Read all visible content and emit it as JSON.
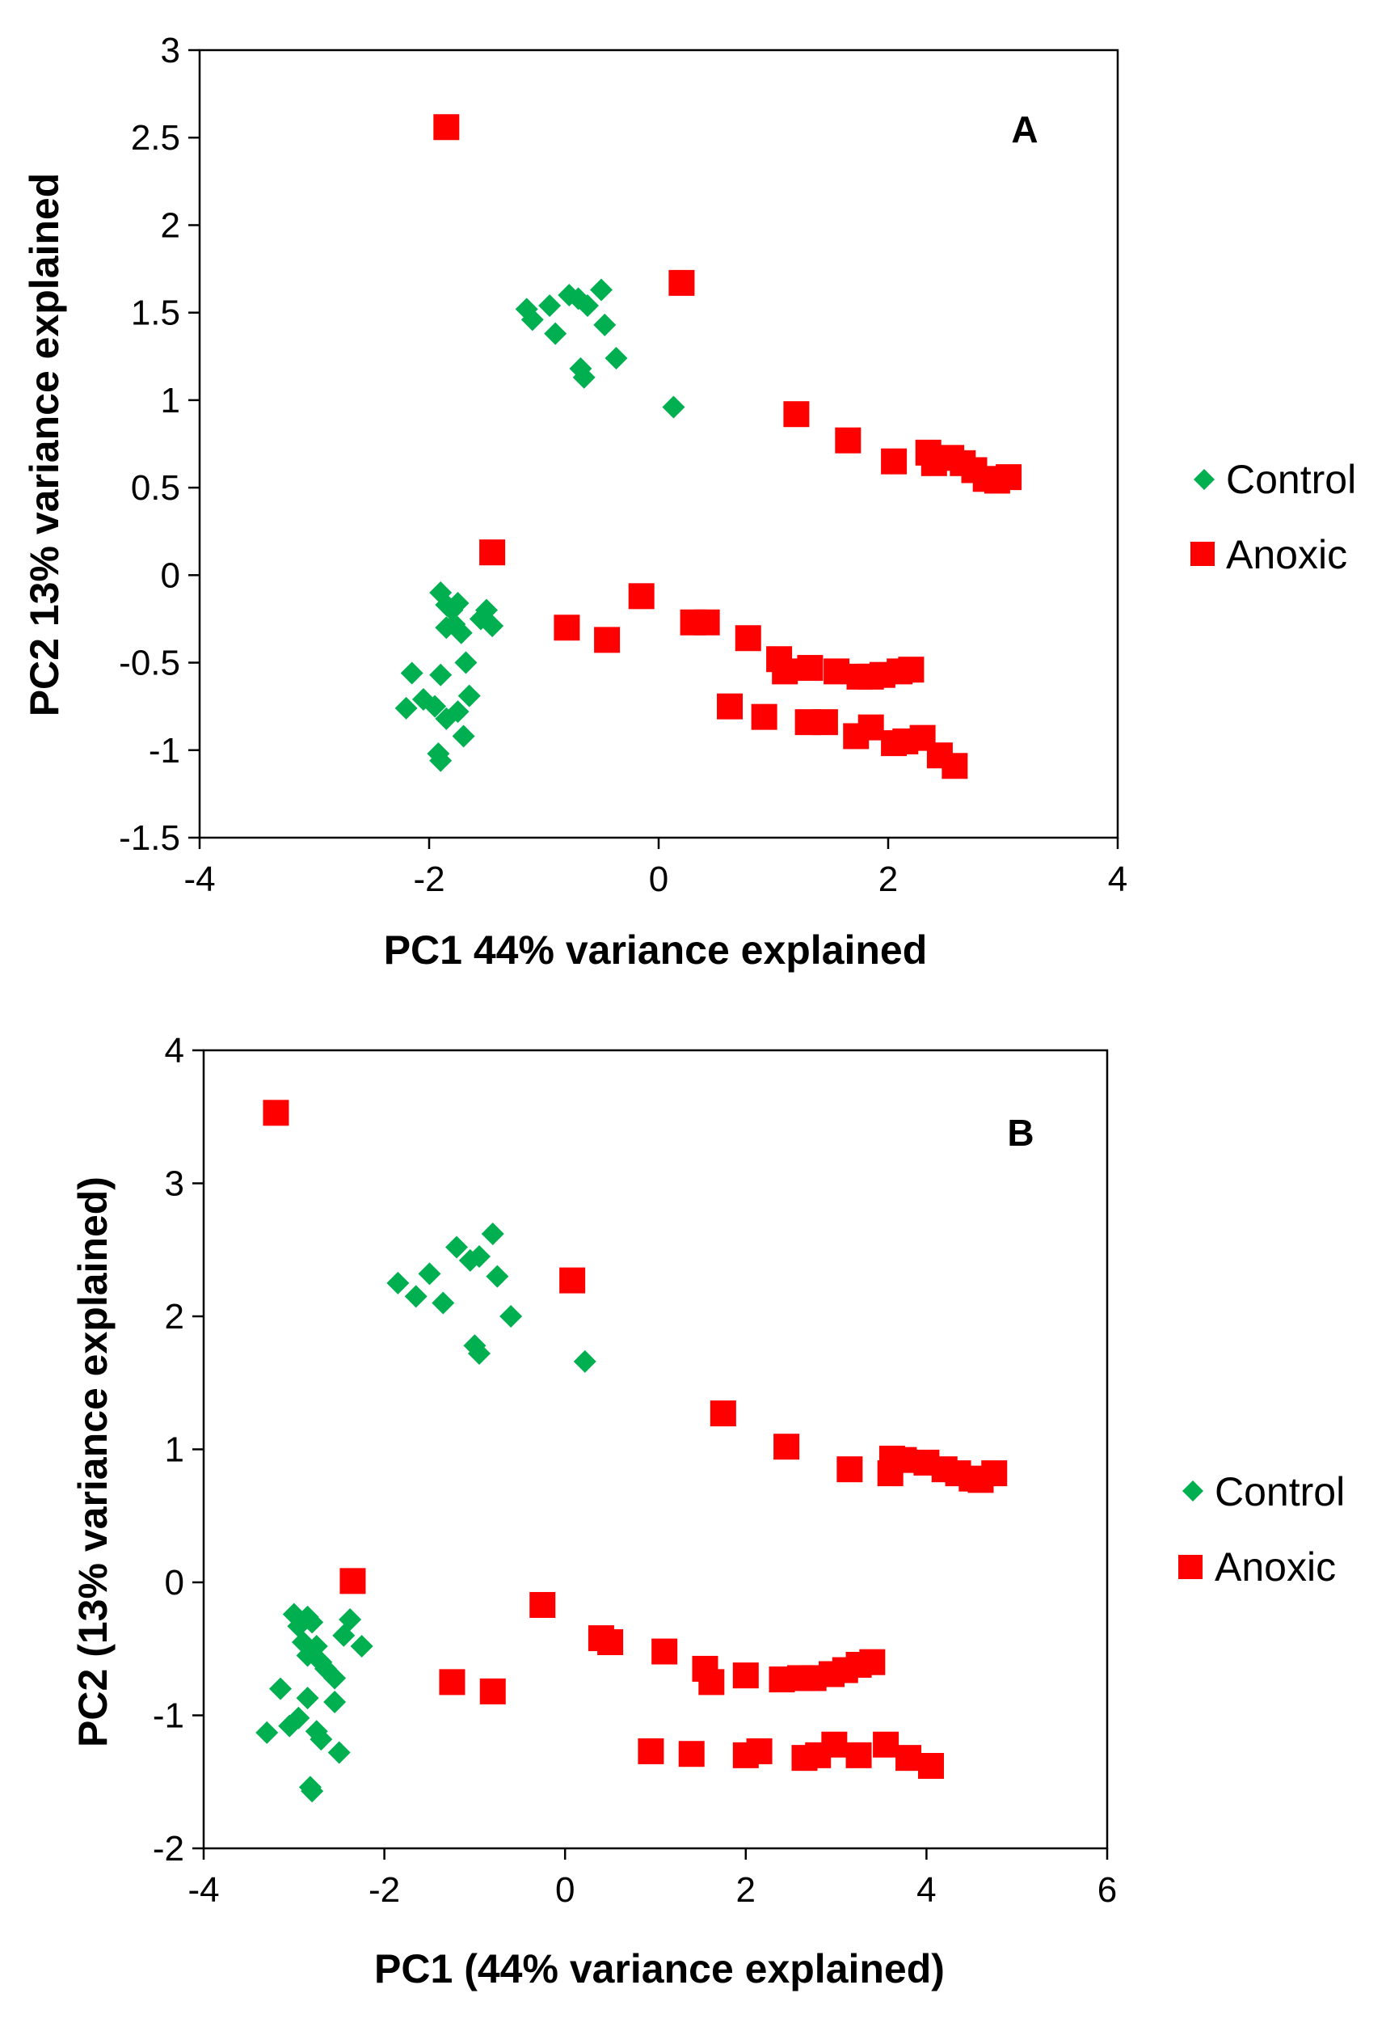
{
  "colors": {
    "control": "#00b050",
    "anoxic": "#ff0000",
    "axis": "#000000"
  },
  "chart_data": [
    {
      "type": "scatter",
      "panel_label": "A",
      "xlabel": "PC1 44% variance explained",
      "ylabel": "PC2 13% variance explained",
      "xlim": [
        -4,
        4
      ],
      "ylim": [
        -1.5,
        3
      ],
      "xticks": [
        -4,
        -2,
        0,
        2,
        4
      ],
      "yticks": [
        -1.5,
        -1,
        -0.5,
        0,
        0.5,
        1,
        1.5,
        2,
        2.5,
        3
      ],
      "xtick_labels": [
        "-4",
        "-2",
        "0",
        "2",
        "4"
      ],
      "ytick_labels": [
        "-1.5",
        "-1",
        "-0.5",
        "0",
        "0.5",
        "1",
        "1.5",
        "2",
        "2.5",
        "3"
      ],
      "legend": {
        "position": "right",
        "entries": [
          "Control",
          "Anoxic"
        ]
      },
      "series": [
        {
          "name": "Control",
          "marker": "diamond",
          "points": [
            [
              -1.15,
              1.52
            ],
            [
              -1.1,
              1.46
            ],
            [
              -0.95,
              1.54
            ],
            [
              -0.9,
              1.38
            ],
            [
              -0.78,
              1.6
            ],
            [
              -0.7,
              1.58
            ],
            [
              -0.62,
              1.54
            ],
            [
              -0.5,
              1.63
            ],
            [
              -0.47,
              1.43
            ],
            [
              -0.37,
              1.24
            ],
            [
              -0.68,
              1.18
            ],
            [
              -0.65,
              1.13
            ],
            [
              0.13,
              0.96
            ],
            [
              -1.9,
              -0.1
            ],
            [
              -1.85,
              -0.17
            ],
            [
              -1.8,
              -0.2
            ],
            [
              -1.78,
              -0.28
            ],
            [
              -1.72,
              -0.33
            ],
            [
              -1.75,
              -0.16
            ],
            [
              -1.85,
              -0.3
            ],
            [
              -1.5,
              -0.2
            ],
            [
              -1.45,
              -0.29
            ],
            [
              -1.55,
              -0.25
            ],
            [
              -2.15,
              -0.56
            ],
            [
              -2.2,
              -0.76
            ],
            [
              -1.9,
              -0.57
            ],
            [
              -2.05,
              -0.71
            ],
            [
              -1.95,
              -0.75
            ],
            [
              -1.85,
              -0.82
            ],
            [
              -1.75,
              -0.78
            ],
            [
              -1.65,
              -0.69
            ],
            [
              -1.68,
              -0.5
            ],
            [
              -1.7,
              -0.92
            ],
            [
              -1.92,
              -1.02
            ],
            [
              -1.9,
              -1.06
            ]
          ]
        },
        {
          "name": "Anoxic",
          "marker": "square",
          "points": [
            [
              -1.85,
              2.56
            ],
            [
              0.2,
              1.67
            ],
            [
              -1.45,
              0.13
            ],
            [
              1.2,
              0.92
            ],
            [
              1.65,
              0.77
            ],
            [
              2.05,
              0.65
            ],
            [
              2.35,
              0.7
            ],
            [
              2.4,
              0.64
            ],
            [
              2.55,
              0.67
            ],
            [
              2.65,
              0.64
            ],
            [
              2.75,
              0.6
            ],
            [
              2.85,
              0.55
            ],
            [
              2.95,
              0.54
            ],
            [
              3.05,
              0.56
            ],
            [
              -0.8,
              -0.3
            ],
            [
              -0.45,
              -0.37
            ],
            [
              -0.15,
              -0.12
            ],
            [
              0.3,
              -0.27
            ],
            [
              0.42,
              -0.27
            ],
            [
              0.78,
              -0.36
            ],
            [
              1.05,
              -0.48
            ],
            [
              1.1,
              -0.55
            ],
            [
              1.32,
              -0.53
            ],
            [
              1.55,
              -0.55
            ],
            [
              1.75,
              -0.58
            ],
            [
              1.85,
              -0.58
            ],
            [
              1.95,
              -0.57
            ],
            [
              2.1,
              -0.55
            ],
            [
              2.2,
              -0.54
            ],
            [
              0.62,
              -0.75
            ],
            [
              0.92,
              -0.81
            ],
            [
              1.3,
              -0.84
            ],
            [
              1.45,
              -0.84
            ],
            [
              1.72,
              -0.92
            ],
            [
              1.85,
              -0.87
            ],
            [
              2.05,
              -0.96
            ],
            [
              2.15,
              -0.95
            ],
            [
              2.3,
              -0.93
            ],
            [
              2.45,
              -1.03
            ],
            [
              2.58,
              -1.09
            ]
          ]
        }
      ]
    },
    {
      "type": "scatter",
      "panel_label": "B",
      "xlabel": "PC1 (44% variance explained)",
      "ylabel": "PC2 (13% variance explained)",
      "xlim": [
        -4,
        6
      ],
      "ylim": [
        -2,
        4
      ],
      "xticks": [
        -4,
        -2,
        0,
        2,
        4,
        6
      ],
      "yticks": [
        -2,
        -1,
        0,
        1,
        2,
        3,
        4
      ],
      "xtick_labels": [
        "-4",
        "-2",
        "0",
        "2",
        "4",
        "6"
      ],
      "ytick_labels": [
        "-2",
        "-1",
        "0",
        "1",
        "2",
        "3",
        "4"
      ],
      "legend": {
        "position": "right",
        "entries": [
          "Control",
          "Anoxic"
        ]
      },
      "series": [
        {
          "name": "Control",
          "marker": "diamond",
          "points": [
            [
              -1.85,
              2.25
            ],
            [
              -1.65,
              2.15
            ],
            [
              -1.5,
              2.32
            ],
            [
              -1.35,
              2.1
            ],
            [
              -1.2,
              2.52
            ],
            [
              -1.05,
              2.42
            ],
            [
              -0.95,
              2.45
            ],
            [
              -0.8,
              2.62
            ],
            [
              -0.75,
              2.3
            ],
            [
              -0.6,
              2.0
            ],
            [
              -1.0,
              1.78
            ],
            [
              -0.95,
              1.72
            ],
            [
              0.22,
              1.66
            ],
            [
              -3.0,
              -0.24
            ],
            [
              -2.95,
              -0.33
            ],
            [
              -2.9,
              -0.45
            ],
            [
              -2.85,
              -0.55
            ],
            [
              -2.8,
              -0.3
            ],
            [
              -2.75,
              -0.48
            ],
            [
              -2.7,
              -0.6
            ],
            [
              -2.65,
              -0.65
            ],
            [
              -2.55,
              -0.72
            ],
            [
              -2.45,
              -0.4
            ],
            [
              -2.38,
              -0.28
            ],
            [
              -2.25,
              -0.48
            ],
            [
              -2.85,
              -0.26
            ],
            [
              -3.15,
              -0.8
            ],
            [
              -3.3,
              -1.13
            ],
            [
              -3.05,
              -1.08
            ],
            [
              -2.95,
              -1.02
            ],
            [
              -2.85,
              -0.87
            ],
            [
              -2.75,
              -1.12
            ],
            [
              -2.7,
              -1.18
            ],
            [
              -2.55,
              -0.9
            ],
            [
              -2.5,
              -1.28
            ],
            [
              -2.82,
              -1.54
            ],
            [
              -2.8,
              -1.57
            ]
          ]
        },
        {
          "name": "Anoxic",
          "marker": "square",
          "points": [
            [
              -3.2,
              3.53
            ],
            [
              0.08,
              2.27
            ],
            [
              -2.35,
              0.01
            ],
            [
              1.75,
              1.27
            ],
            [
              2.45,
              1.02
            ],
            [
              3.15,
              0.85
            ],
            [
              3.6,
              0.82
            ],
            [
              3.62,
              0.93
            ],
            [
              3.75,
              0.92
            ],
            [
              4.0,
              0.9
            ],
            [
              4.2,
              0.85
            ],
            [
              4.35,
              0.82
            ],
            [
              4.5,
              0.78
            ],
            [
              4.6,
              0.77
            ],
            [
              4.75,
              0.82
            ],
            [
              -1.25,
              -0.75
            ],
            [
              -0.8,
              -0.82
            ],
            [
              -0.25,
              -0.17
            ],
            [
              0.4,
              -0.42
            ],
            [
              0.5,
              -0.45
            ],
            [
              1.1,
              -0.52
            ],
            [
              1.55,
              -0.65
            ],
            [
              1.62,
              -0.75
            ],
            [
              2.0,
              -0.7
            ],
            [
              2.4,
              -0.73
            ],
            [
              2.6,
              -0.72
            ],
            [
              2.75,
              -0.72
            ],
            [
              2.95,
              -0.69
            ],
            [
              3.1,
              -0.66
            ],
            [
              3.25,
              -0.62
            ],
            [
              3.4,
              -0.6
            ],
            [
              0.95,
              -1.27
            ],
            [
              1.4,
              -1.29
            ],
            [
              2.0,
              -1.3
            ],
            [
              2.15,
              -1.27
            ],
            [
              2.65,
              -1.32
            ],
            [
              2.8,
              -1.3
            ],
            [
              2.98,
              -1.22
            ],
            [
              3.25,
              -1.3
            ],
            [
              3.55,
              -1.22
            ],
            [
              3.8,
              -1.32
            ],
            [
              4.05,
              -1.38
            ]
          ]
        }
      ]
    }
  ]
}
